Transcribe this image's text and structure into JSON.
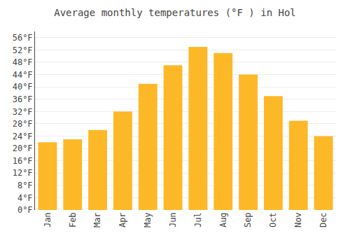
{
  "chart_data": {
    "type": "bar",
    "title": "Average monthly temperatures (°F ) in Hol",
    "categories": [
      "Jan",
      "Feb",
      "Mar",
      "Apr",
      "May",
      "Jun",
      "Jul",
      "Aug",
      "Sep",
      "Oct",
      "Nov",
      "Dec"
    ],
    "values": [
      22,
      23,
      26,
      32,
      41,
      47,
      53,
      51,
      44,
      37,
      29,
      24
    ],
    "color": "#FDB827",
    "ylim": [
      0,
      58
    ],
    "yticks": [
      {
        "value": 0,
        "label": "0°F"
      },
      {
        "value": 4,
        "label": "4°F"
      },
      {
        "value": 8,
        "label": "8°F"
      },
      {
        "value": 12,
        "label": "12°F"
      },
      {
        "value": 16,
        "label": "16°F"
      },
      {
        "value": 20,
        "label": "20°F"
      },
      {
        "value": 24,
        "label": "24°F"
      },
      {
        "value": 28,
        "label": "28°F"
      },
      {
        "value": 32,
        "label": "32°F"
      },
      {
        "value": 36,
        "label": "36°F"
      },
      {
        "value": 40,
        "label": "40°F"
      },
      {
        "value": 44,
        "label": "44°F"
      },
      {
        "value": 48,
        "label": "48°F"
      },
      {
        "value": 52,
        "label": "52°F"
      },
      {
        "value": 56,
        "label": "56°F"
      }
    ],
    "grid": true
  }
}
